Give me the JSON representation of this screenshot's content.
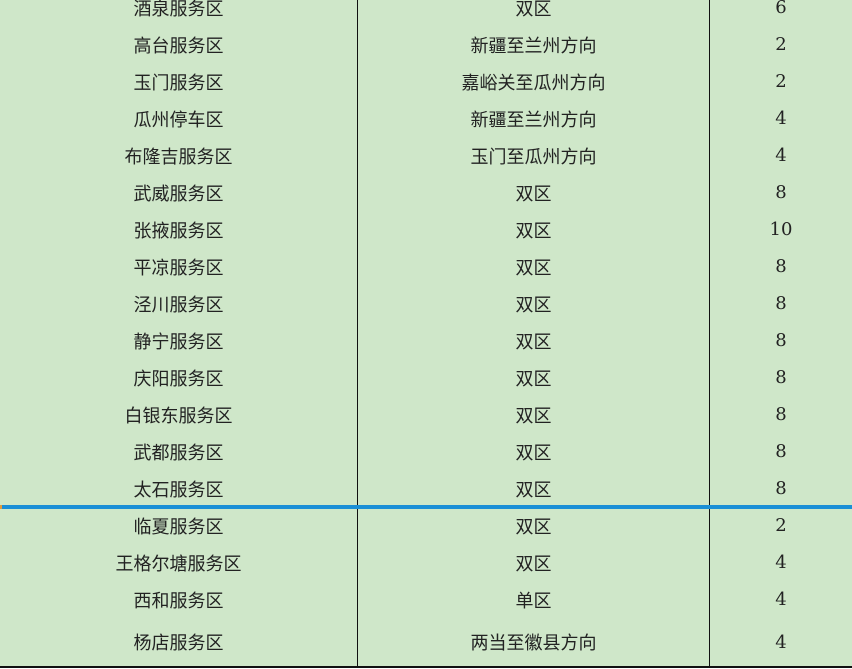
{
  "table": {
    "rows": [
      {
        "name": "酒泉服务区",
        "direction": "双区",
        "count": "6"
      },
      {
        "name": "高台服务区",
        "direction": "新疆至兰州方向",
        "count": "2"
      },
      {
        "name": "玉门服务区",
        "direction": "嘉峪关至瓜州方向",
        "count": "2"
      },
      {
        "name": "瓜州停车区",
        "direction": "新疆至兰州方向",
        "count": "4"
      },
      {
        "name": "布隆吉服务区",
        "direction": "玉门至瓜州方向",
        "count": "4"
      },
      {
        "name": "武威服务区",
        "direction": "双区",
        "count": "8"
      },
      {
        "name": "张掖服务区",
        "direction": "双区",
        "count": "10"
      },
      {
        "name": "平凉服务区",
        "direction": "双区",
        "count": "8"
      },
      {
        "name": "泾川服务区",
        "direction": "双区",
        "count": "8"
      },
      {
        "name": "静宁服务区",
        "direction": "双区",
        "count": "8"
      },
      {
        "name": "庆阳服务区",
        "direction": "双区",
        "count": "8"
      },
      {
        "name": "白银东服务区",
        "direction": "双区",
        "count": "8"
      },
      {
        "name": "武都服务区",
        "direction": "双区",
        "count": "8"
      },
      {
        "name": "太石服务区",
        "direction": "双区",
        "count": "8"
      },
      {
        "name": "临夏服务区",
        "direction": "双区",
        "count": "2"
      },
      {
        "name": "王格尔塘服务区",
        "direction": "双区",
        "count": "4"
      },
      {
        "name": "西和服务区",
        "direction": "单区",
        "count": "4"
      },
      {
        "name": "杨店服务区",
        "direction": "两当至徽县方向",
        "count": "4"
      }
    ]
  },
  "colors": {
    "cell_background": "#cfe7c9",
    "selection_line": "#1a8fd6"
  }
}
